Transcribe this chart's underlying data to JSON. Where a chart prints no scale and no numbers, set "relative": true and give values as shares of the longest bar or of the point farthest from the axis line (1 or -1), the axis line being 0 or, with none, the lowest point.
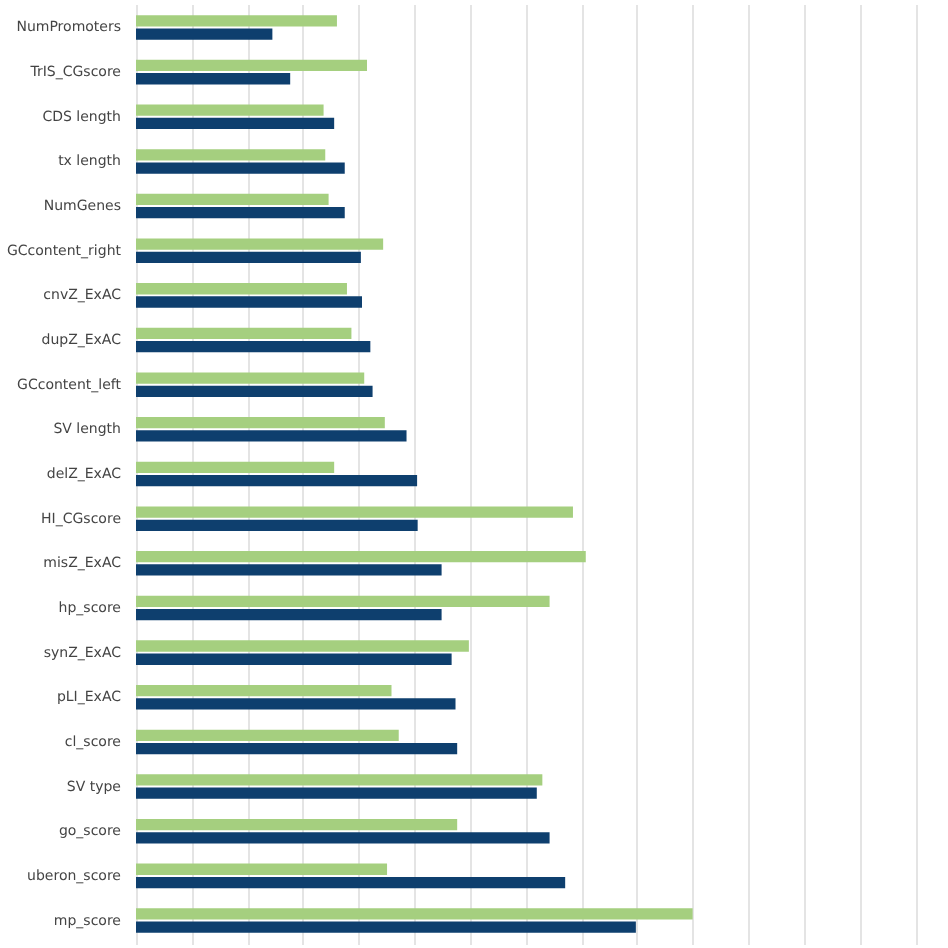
{
  "chart_data": {
    "type": "bar",
    "orientation": "horizontal",
    "relative": true,
    "grid": "x",
    "categories": [
      "NumPromoters",
      "TrIS_CGscore",
      "CDS length",
      "tx length",
      "NumGenes",
      "GCcontent_right",
      "cnvZ_ExAC",
      "dupZ_ExAC",
      "GCcontent_left",
      "SV length",
      "delZ_ExAC",
      "HI_CGscore",
      "misZ_ExAC",
      "hp_score",
      "synZ_ExAC",
      "pLI_ExAC",
      "cl_score",
      "SV type",
      "go_score",
      "uberon_score",
      "mp_score"
    ],
    "series": [
      {
        "color": "#a5cf7f",
        "values": [
          0.361,
          0.415,
          0.337,
          0.34,
          0.346,
          0.444,
          0.379,
          0.387,
          0.41,
          0.447,
          0.356,
          0.785,
          0.808,
          0.743,
          0.598,
          0.459,
          0.472,
          0.73,
          0.577,
          0.451,
          1
        ]
      },
      {
        "color": "#0e3f6e",
        "values": [
          0.245,
          0.277,
          0.356,
          0.375,
          0.375,
          0.404,
          0.406,
          0.421,
          0.425,
          0.486,
          0.505,
          0.506,
          0.549,
          0.549,
          0.567,
          0.574,
          0.577,
          0.72,
          0.743,
          0.771,
          0.898
        ]
      }
    ]
  }
}
